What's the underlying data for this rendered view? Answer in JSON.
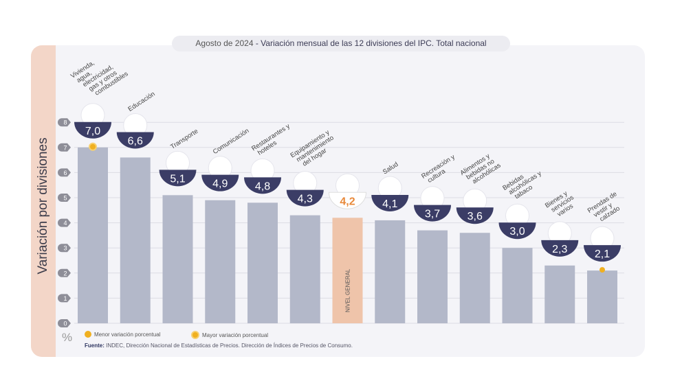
{
  "title": {
    "date": "Agosto de 2024",
    "text": " - Variación mensual de las 12 divisiones del IPC. Total nacional"
  },
  "ylabel": "Variación por divisiones",
  "unit": "%",
  "legend": {
    "min": "Menor variación porcentual",
    "max": "Mayor variación porcentual"
  },
  "source": {
    "label": "Fuente:",
    "text": " INDEC, Dirección Nacional de Estadísticas de Precios. Dirección de Índices de Precios de Consumo."
  },
  "chart_data": {
    "type": "bar",
    "ylim": [
      0,
      8
    ],
    "yticks": [
      0,
      1,
      2,
      3,
      4,
      5,
      6,
      7,
      8
    ],
    "grid": true,
    "categories": [
      "Vivienda, agua, electricidad, gas y otros combustibles",
      "Educación",
      "Transporte",
      "Comunicación",
      "Restaurantes y hoteles",
      "Equipamiento y mantenimiento del hogar",
      "NIVEL GENERAL",
      "Salud",
      "Recreación y cultura",
      "Alimentos y bebidas no alcohólicas",
      "Bebidas alcohólicas y tabaco",
      "Bienes y servicios varios",
      "Prendas de vestir y calzado"
    ],
    "values": [
      7.0,
      6.6,
      5.1,
      4.9,
      4.8,
      4.3,
      4.2,
      4.1,
      3.7,
      3.6,
      3.0,
      2.3,
      2.1
    ],
    "value_labels": [
      "7,0",
      "6,6",
      "5,1",
      "4,9",
      "4,8",
      "4,3",
      "4,2",
      "4,1",
      "3,7",
      "3,6",
      "3,0",
      "2,3",
      "2,1"
    ],
    "highlight": "NIVEL GENERAL",
    "max_marker": "Vivienda, agua, electricidad, gas y otros combustibles",
    "min_marker": "Prendas de vestir y calzado",
    "colors": {
      "bar": "#b3b8c9",
      "general": "#efc4aa",
      "badge": "#3b3d66",
      "general_text": "#e8893a",
      "marker": "#f0b020"
    }
  }
}
